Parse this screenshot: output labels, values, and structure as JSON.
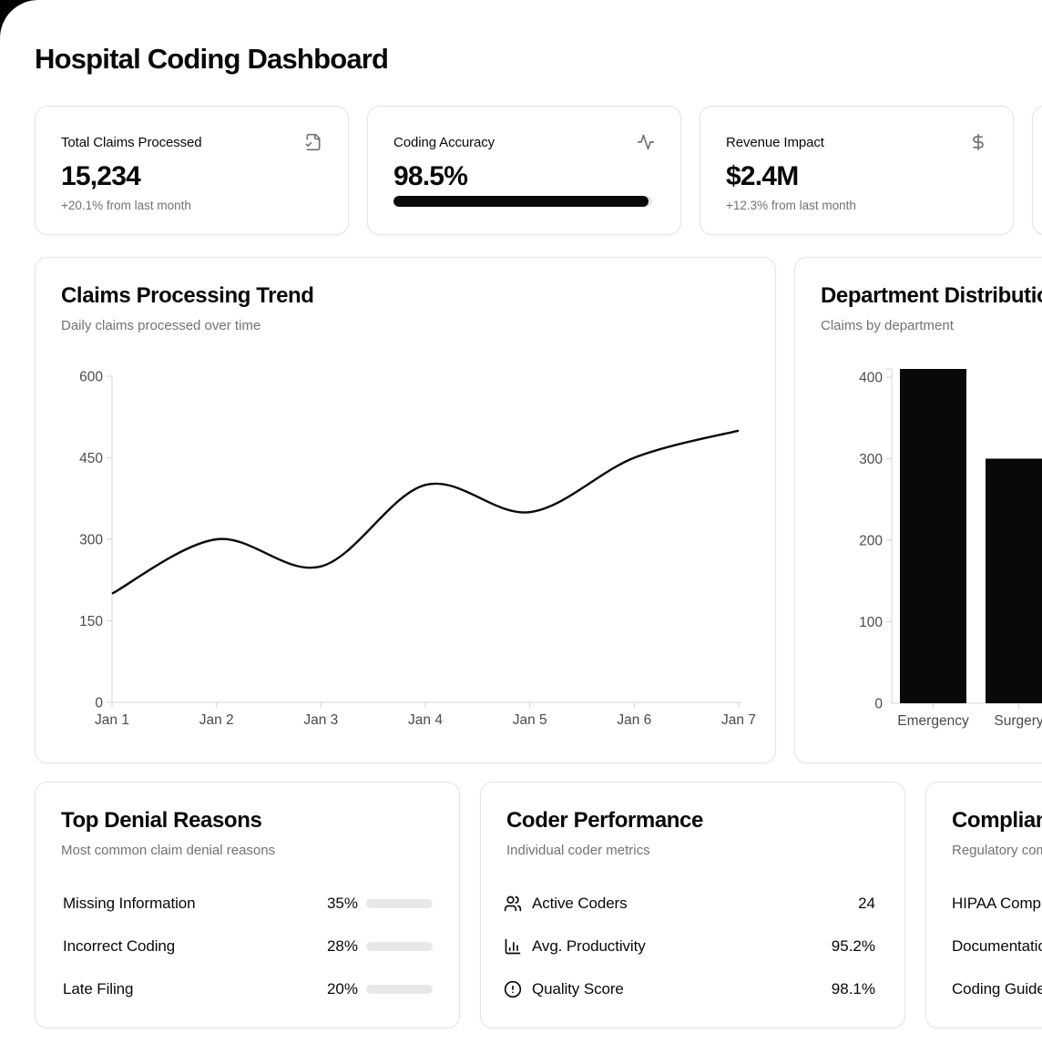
{
  "header": {
    "title": "Hospital Coding Dashboard"
  },
  "colors": {
    "accent": "#09090b",
    "muted": "#71717a",
    "card_border": "#e4e4e7",
    "axis_line": "#d4d4d4",
    "tick_label": "#4b4b4b",
    "progress_track": "#e8e8e8",
    "corner_backdrop": "#000000"
  },
  "stats": [
    {
      "title": "Total Claims Processed",
      "icon": "file-check-icon",
      "value": "15,234",
      "change": "+20.1% from last month"
    },
    {
      "title": "Coding Accuracy",
      "icon": "activity-icon",
      "value": "98.5%",
      "progress_pct": 98.5
    },
    {
      "title": "Revenue Impact",
      "icon": "dollar-sign-icon",
      "value": "$2.4M",
      "change": "+12.3% from last month"
    }
  ],
  "chart_data": [
    {
      "type": "line",
      "title": "Claims Processing Trend",
      "subtitle": "Daily claims processed over time",
      "x": [
        "Jan 1",
        "Jan 2",
        "Jan 3",
        "Jan 4",
        "Jan 5",
        "Jan 6",
        "Jan 7"
      ],
      "values": [
        200,
        300,
        250,
        400,
        350,
        450,
        500
      ],
      "ylim": [
        0,
        600
      ],
      "yticks": [
        0,
        150,
        300,
        450,
        600
      ],
      "grid": false,
      "legend": false,
      "line_color": "#09090b"
    },
    {
      "type": "bar",
      "title": "Department Distribution",
      "subtitle": "Claims by department",
      "categories": [
        "Emergency",
        "Surgery"
      ],
      "values": [
        410,
        300
      ],
      "ylim": [
        0,
        410
      ],
      "yticks": [
        0,
        100,
        200,
        300,
        400
      ],
      "grid": false,
      "legend": false,
      "bar_color": "#09090b",
      "clipped_right": true
    }
  ],
  "denial_reasons": {
    "title": "Top Denial Reasons",
    "subtitle": "Most common claim denial reasons",
    "items": [
      {
        "label": "Missing Information",
        "pct": "35%",
        "value": 35
      },
      {
        "label": "Incorrect Coding",
        "pct": "28%",
        "value": 28
      },
      {
        "label": "Late Filing",
        "pct": "20%",
        "value": 20
      }
    ]
  },
  "coder_performance": {
    "title": "Coder Performance",
    "subtitle": "Individual coder metrics",
    "items": [
      {
        "icon": "users-icon",
        "label": "Active Coders",
        "value": "24"
      },
      {
        "icon": "bar-chart-icon",
        "label": "Avg. Productivity",
        "value": "95.2%"
      },
      {
        "icon": "alert-circle-icon",
        "label": "Quality Score",
        "value": "98.1%"
      }
    ]
  },
  "compliance": {
    "title": "Compliance",
    "subtitle": "Regulatory compliance",
    "items": [
      {
        "label": "HIPAA Compliance"
      },
      {
        "label": "Documentation"
      },
      {
        "label": "Coding Guidelines"
      }
    ]
  }
}
